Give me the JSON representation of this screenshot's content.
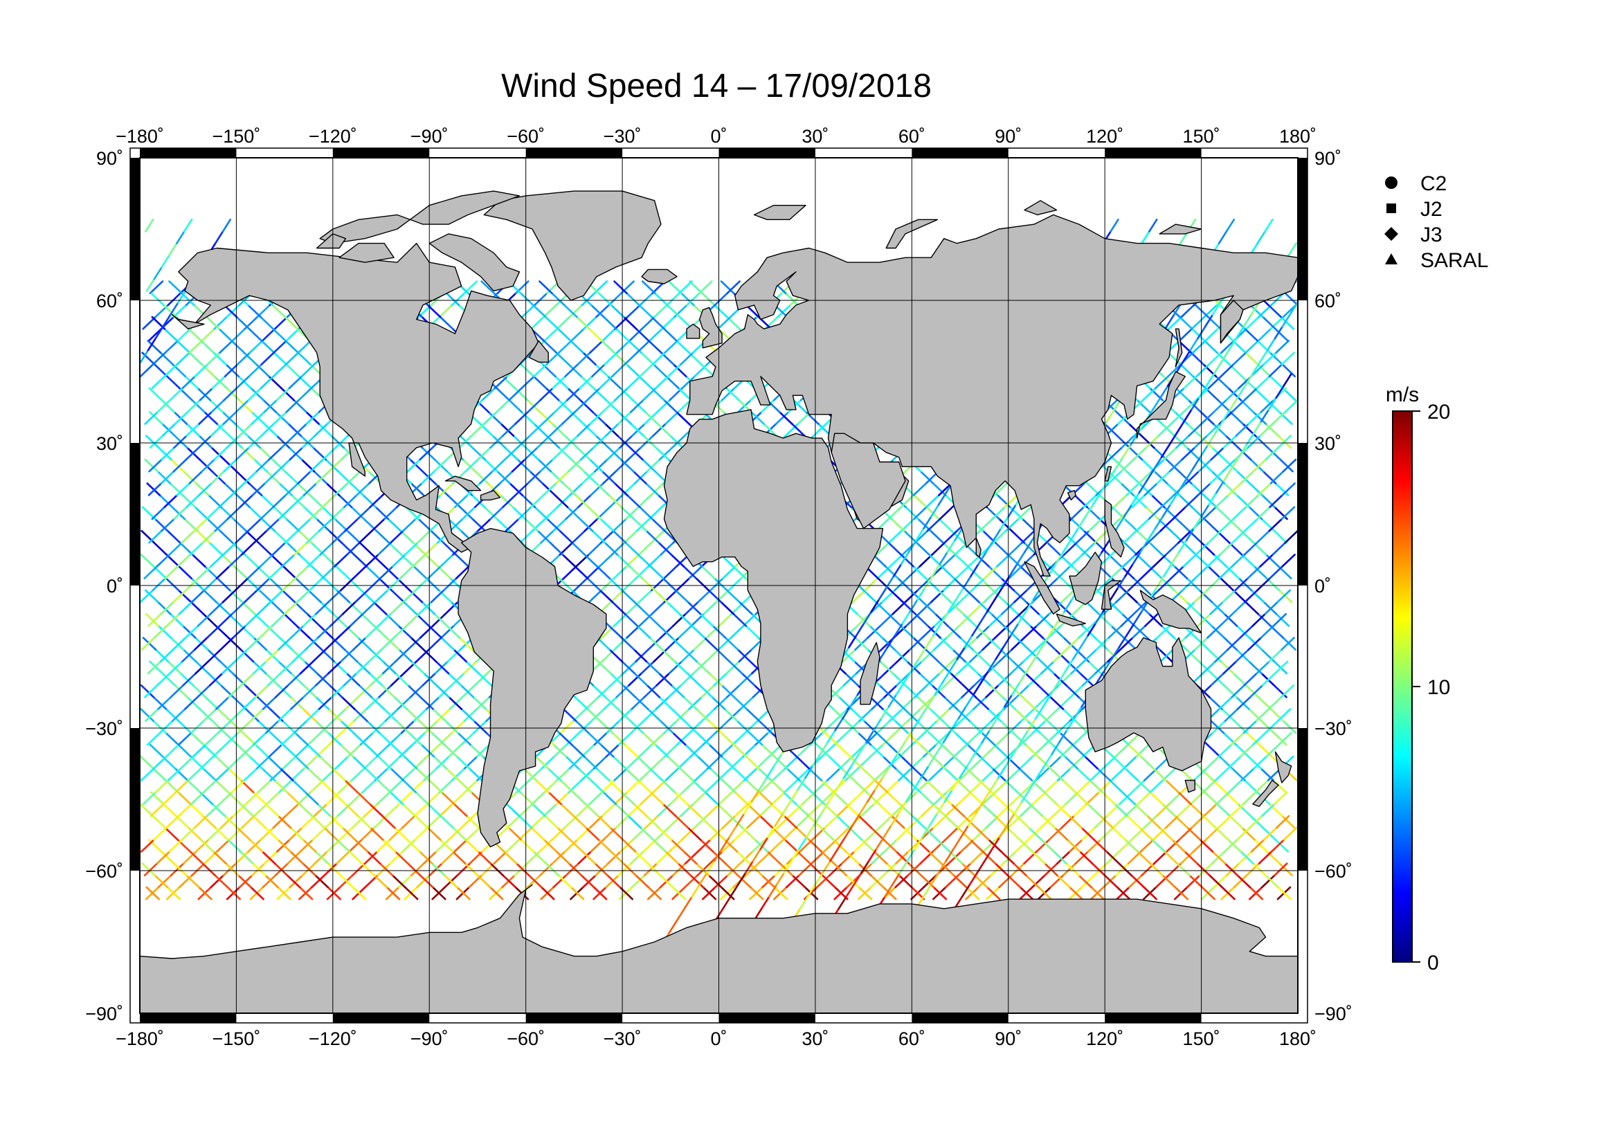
{
  "chart_data": {
    "type": "scatter",
    "title": "Wind Speed 14 – 17/09/2018",
    "x_axis": {
      "range": [
        -180,
        180
      ],
      "ticks": [
        -180,
        -150,
        -120,
        -90,
        -60,
        -30,
        0,
        30,
        60,
        90,
        120,
        150,
        180
      ]
    },
    "y_axis": {
      "range": [
        -90,
        90
      ],
      "ticks": [
        90,
        60,
        30,
        0,
        -30,
        -60,
        -90
      ]
    },
    "degree_symbol": "˚",
    "grid": true,
    "legend_placement": "top-right",
    "legend": [
      {
        "name": "C2",
        "marker": "circle"
      },
      {
        "name": "J2",
        "marker": "square"
      },
      {
        "name": "J3",
        "marker": "diamond"
      },
      {
        "name": "SARAL",
        "marker": "triangle"
      }
    ],
    "colorbar": {
      "unit": "m/s",
      "min": 0,
      "max": 20,
      "ticks": [
        20,
        10,
        0
      ],
      "colormap": [
        "#00007f",
        "#0000ff",
        "#007fff",
        "#00ffff",
        "#7fff7f",
        "#ffff00",
        "#ff7f00",
        "#ff0000",
        "#7f0000"
      ]
    },
    "colors": {
      "land": "#bdbdbd",
      "ocean": "#ffffff",
      "coast": "#000000"
    }
  }
}
